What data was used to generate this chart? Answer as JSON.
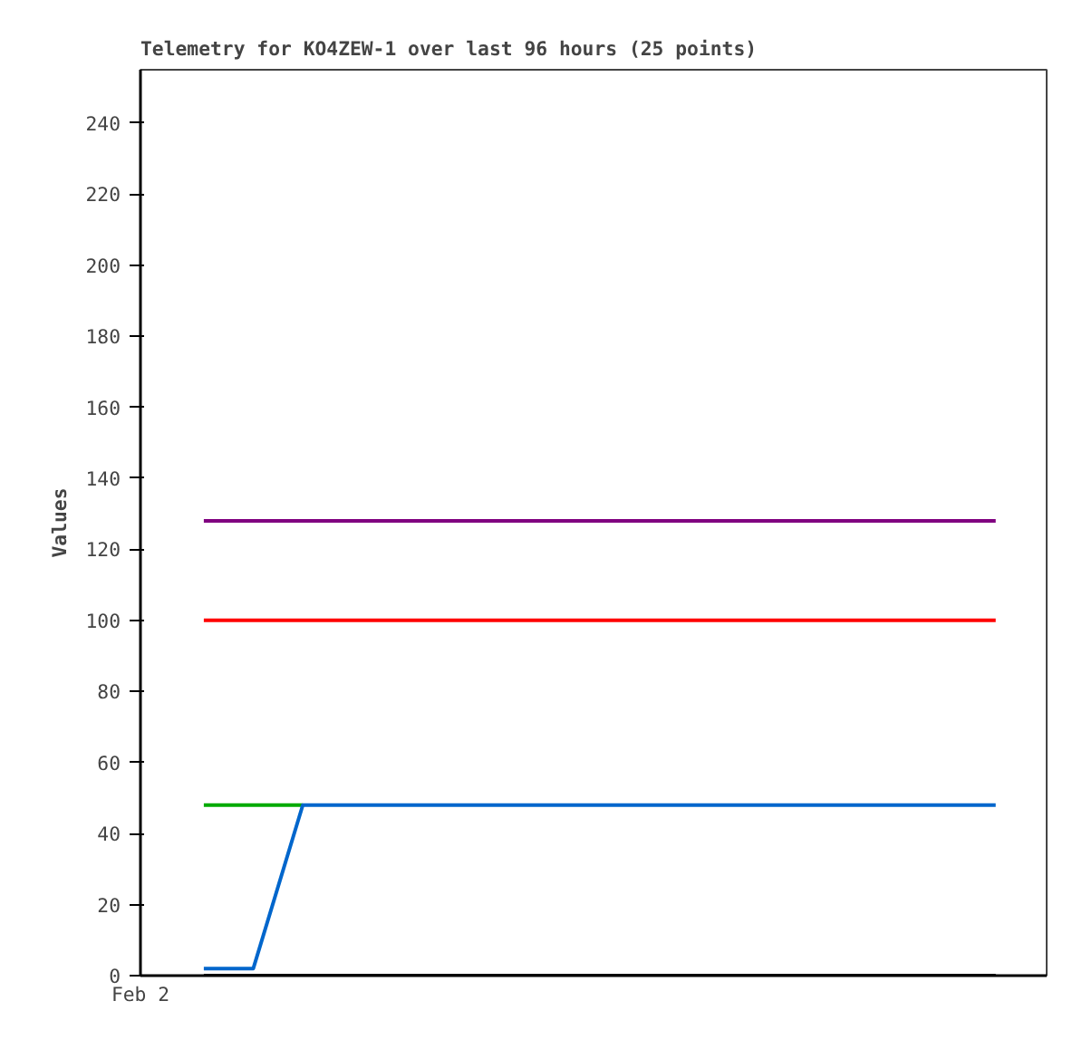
{
  "chart_data": {
    "type": "line",
    "title": "Telemetry for KO4ZEW-1 over last 96 hours (25 points)",
    "ylabel": "Values",
    "annotations": [
      "Feb 2"
    ],
    "categories": [
      null,
      null,
      null,
      null,
      null,
      null,
      null,
      null,
      null,
      null,
      null,
      null,
      null,
      null,
      null,
      null,
      null
    ],
    "ylim": [
      0,
      255
    ],
    "yticks": [
      0,
      20,
      40,
      60,
      80,
      100,
      120,
      140,
      160,
      180,
      200,
      220,
      240
    ],
    "series": [
      {
        "color": "#800080",
        "values": [
          128,
          128,
          128,
          128,
          128,
          128,
          128,
          128,
          128,
          128,
          128,
          128,
          128,
          128,
          128,
          128,
          128
        ]
      },
      {
        "color": "#ff0000",
        "values": [
          100,
          100,
          100,
          100,
          100,
          100,
          100,
          100,
          100,
          100,
          100,
          100,
          100,
          100,
          100,
          100,
          100
        ]
      },
      {
        "color": "#00aa00",
        "values": [
          48,
          48,
          48,
          null,
          null,
          null,
          null,
          null,
          null,
          null,
          null,
          null,
          null,
          null,
          null,
          null,
          null
        ]
      },
      {
        "color": "#0066cc",
        "values": [
          2,
          2,
          48,
          48,
          48,
          48,
          48,
          48,
          48,
          48,
          48,
          48,
          48,
          48,
          48,
          48,
          48
        ]
      },
      {
        "color": "#000000",
        "values": [
          0,
          0,
          0,
          0,
          0,
          0,
          0,
          0,
          0,
          0,
          0,
          0,
          0,
          0,
          0,
          0,
          0
        ]
      }
    ]
  }
}
